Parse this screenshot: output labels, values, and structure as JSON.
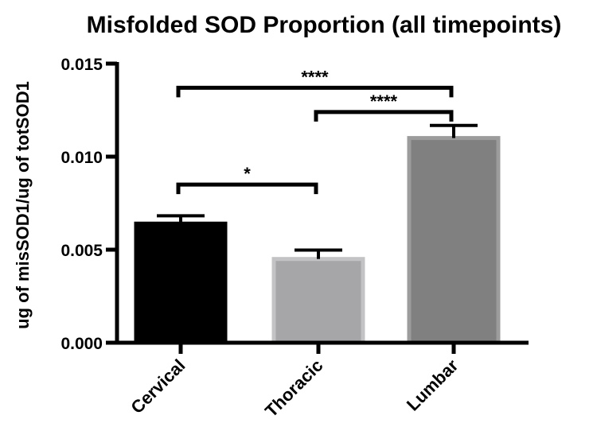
{
  "chart_data": {
    "type": "bar",
    "title": "Misfolded SOD Proportion (all timepoints)",
    "xlabel": "",
    "ylabel": "ug of misSOD1/ug of totSOD1",
    "ylim": [
      0,
      0.015
    ],
    "yticks": [
      0,
      0.005,
      0.01,
      0.015
    ],
    "ytick_labels": [
      "0.000",
      "0.005",
      "0.010",
      "0.015"
    ],
    "categories": [
      "Cervical",
      "Thoracic",
      "Lumbar"
    ],
    "values": [
      0.0064,
      0.0045,
      0.011
    ],
    "errors": [
      0.00042,
      0.00048,
      0.00068
    ],
    "colors": [
      "#000000",
      "#a6a6a8",
      "#808080"
    ],
    "edge_colors": [
      "#000000",
      "#c3c3c5",
      "#9c9c9c"
    ],
    "grid": false,
    "legend": "none",
    "significance": [
      {
        "from": 0,
        "to": 1,
        "label": "*",
        "y": 0.0085
      },
      {
        "from": 1,
        "to": 2,
        "label": "****",
        "y": 0.0124
      },
      {
        "from": 0,
        "to": 2,
        "label": "****",
        "y": 0.0137
      }
    ]
  }
}
